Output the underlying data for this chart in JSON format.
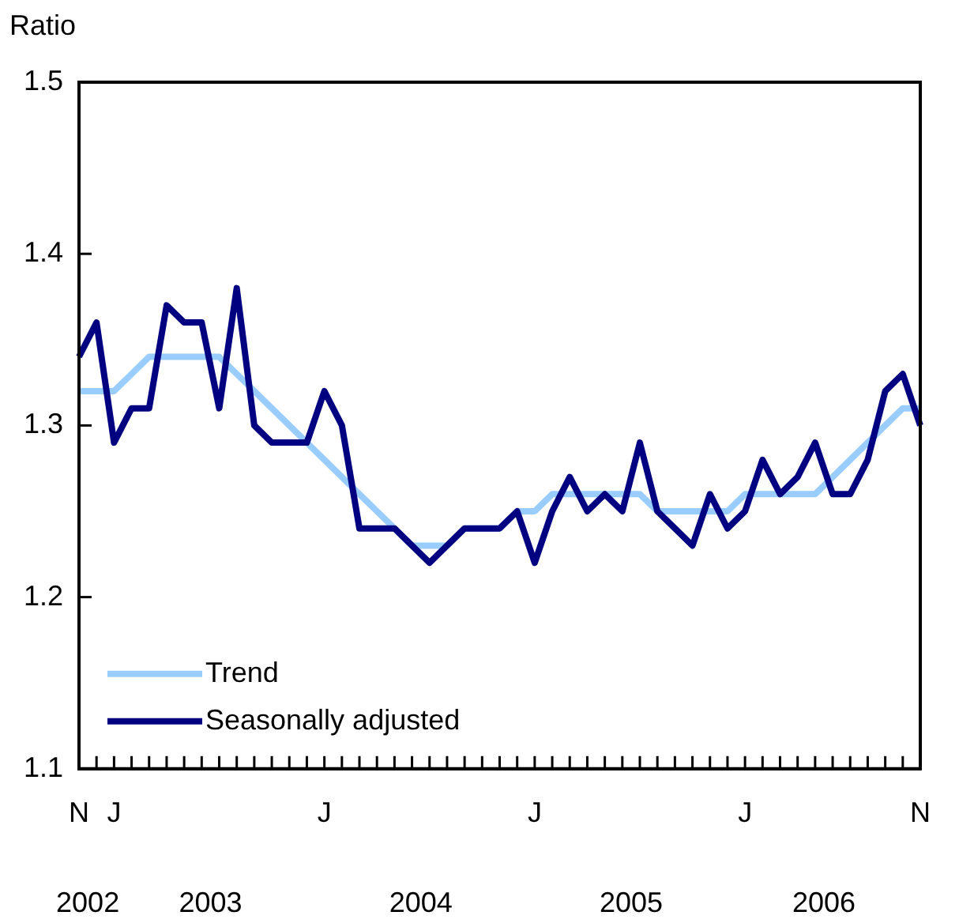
{
  "chart_data": {
    "type": "line",
    "ylabel": "Ratio",
    "categories": [
      "N",
      null,
      "J",
      null,
      null,
      null,
      null,
      null,
      null,
      null,
      null,
      null,
      null,
      null,
      "J",
      null,
      null,
      null,
      null,
      null,
      null,
      null,
      null,
      null,
      null,
      null,
      "J",
      null,
      null,
      null,
      null,
      null,
      null,
      null,
      null,
      null,
      null,
      null,
      "J",
      null,
      null,
      null,
      null,
      null,
      null,
      null,
      null,
      null,
      "N"
    ],
    "series": [
      {
        "name": "Trend",
        "color": "#99ccff",
        "values": [
          1.32,
          1.32,
          1.32,
          1.33,
          1.34,
          1.34,
          1.34,
          1.34,
          1.34,
          1.33,
          1.32,
          1.31,
          1.3,
          1.29,
          1.28,
          1.27,
          1.26,
          1.25,
          1.24,
          1.23,
          1.23,
          1.23,
          1.24,
          1.24,
          1.24,
          1.25,
          1.25,
          1.26,
          1.26,
          1.26,
          1.26,
          1.26,
          1.26,
          1.25,
          1.25,
          1.25,
          1.25,
          1.25,
          1.26,
          1.26,
          1.26,
          1.26,
          1.26,
          1.27,
          1.28,
          1.29,
          1.3,
          1.31,
          1.31
        ]
      },
      {
        "name": "Seasonally adjusted",
        "color": "#000080",
        "values": [
          1.34,
          1.36,
          1.29,
          1.31,
          1.31,
          1.37,
          1.36,
          1.36,
          1.31,
          1.38,
          1.3,
          1.29,
          1.29,
          1.29,
          1.32,
          1.3,
          1.24,
          1.24,
          1.24,
          1.23,
          1.22,
          1.23,
          1.24,
          1.24,
          1.24,
          1.25,
          1.22,
          1.25,
          1.27,
          1.25,
          1.26,
          1.25,
          1.29,
          1.25,
          1.24,
          1.23,
          1.26,
          1.24,
          1.25,
          1.28,
          1.26,
          1.27,
          1.29,
          1.26,
          1.26,
          1.28,
          1.32,
          1.33,
          1.3
        ]
      }
    ],
    "ylim": [
      1.1,
      1.5
    ],
    "yticks": [
      1.1,
      1.2,
      1.3,
      1.4,
      1.5
    ],
    "grid": false,
    "marker": "none",
    "line_style": "solid",
    "legend": "bottom left",
    "annotations": [
      "2002",
      "2003",
      "2004",
      "2005",
      "2006"
    ]
  }
}
